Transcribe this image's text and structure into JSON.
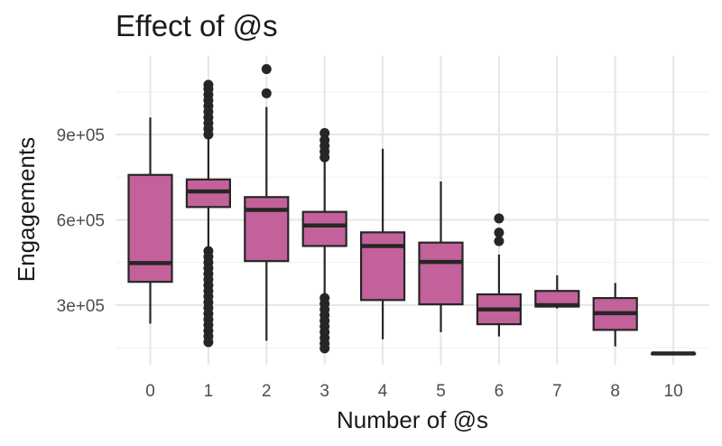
{
  "chart_data": {
    "type": "boxplot",
    "title": "Effect of @s",
    "xlabel": "Number of @s",
    "ylabel": "Engagements",
    "categories": [
      "0",
      "1",
      "2",
      "3",
      "4",
      "5",
      "6",
      "7",
      "8",
      "10"
    ],
    "yticks": [
      300000,
      600000,
      900000
    ],
    "ytick_labels": [
      "3e+05",
      "6e+05",
      "9e+05"
    ],
    "ylim": [
      100000,
      1150000
    ],
    "grid": true,
    "box_fill": "#c3619a",
    "box_stroke": "#262626",
    "boxes": [
      {
        "category": "0",
        "whisker_low": 235000,
        "q1": 382000,
        "median": 448000,
        "q3": 758000,
        "whisker_high": 960000,
        "outliers": []
      },
      {
        "category": "1",
        "whisker_low": 490000,
        "q1": 645000,
        "median": 700000,
        "q3": 742000,
        "whisker_high": 900000,
        "outliers": [
          170000,
          190000,
          210000,
          230000,
          250000,
          270000,
          290000,
          310000,
          330000,
          350000,
          370000,
          390000,
          410000,
          430000,
          450000,
          470000,
          490000,
          900000,
          920000,
          940000,
          960000,
          980000,
          1000000,
          1020000,
          1040000,
          1060000,
          1075000
        ]
      },
      {
        "category": "2",
        "whisker_low": 175000,
        "q1": 455000,
        "median": 635000,
        "q3": 680000,
        "whisker_high": 997000,
        "outliers": [
          1045000,
          1130000
        ]
      },
      {
        "category": "3",
        "whisker_low": 330000,
        "q1": 508000,
        "median": 580000,
        "q3": 628000,
        "whisker_high": 810000,
        "outliers": [
          148000,
          165000,
          185000,
          205000,
          225000,
          245000,
          265000,
          285000,
          305000,
          325000,
          820000,
          840000,
          860000,
          880000,
          905000
        ]
      },
      {
        "category": "4",
        "whisker_low": 180000,
        "q1": 318000,
        "median": 508000,
        "q3": 556000,
        "whisker_high": 850000,
        "outliers": []
      },
      {
        "category": "5",
        "whisker_low": 205000,
        "q1": 303000,
        "median": 452000,
        "q3": 520000,
        "whisker_high": 735000,
        "outliers": []
      },
      {
        "category": "6",
        "whisker_low": 190000,
        "q1": 233000,
        "median": 285000,
        "q3": 338000,
        "whisker_high": 478000,
        "outliers": [
          525000,
          555000,
          605000
        ]
      },
      {
        "category": "7",
        "whisker_low": 288000,
        "q1": 295000,
        "median": 300000,
        "q3": 350000,
        "whisker_high": 405000,
        "outliers": []
      },
      {
        "category": "8",
        "whisker_low": 155000,
        "q1": 213000,
        "median": 272000,
        "q3": 325000,
        "whisker_high": 378000,
        "outliers": []
      },
      {
        "category": "10",
        "whisker_low": 130000,
        "q1": 130000,
        "median": 130000,
        "q3": 130000,
        "whisker_high": 130000,
        "outliers": []
      }
    ]
  }
}
